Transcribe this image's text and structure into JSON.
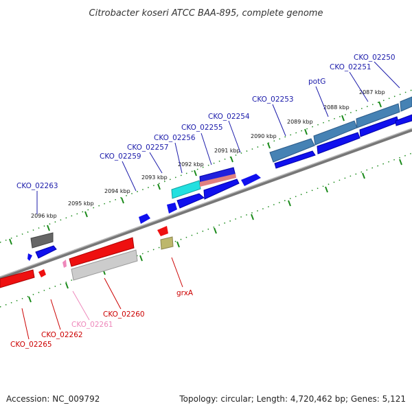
{
  "title": "Citrobacter koseri ATCC BAA-895, complete genome",
  "footer": {
    "accession": "Accession: NC_009792",
    "summary": "Topology: circular; Length: 4,720,462 bp; Genes: 5,121"
  },
  "scale_labels": [
    "2096 kbp",
    "2095 kbp",
    "2094 kbp",
    "2093 kbp",
    "2092 kbp",
    "2091 kbp",
    "2090 kbp",
    "2089 kbp",
    "2088 kbp",
    "2087 kbp"
  ],
  "gene_labels": [
    {
      "text": "CKO_02263",
      "color": "#1a1aaa"
    },
    {
      "text": "CKO_02259",
      "color": "#1a1aaa"
    },
    {
      "text": "CKO_02257",
      "color": "#1a1aaa"
    },
    {
      "text": "CKO_02256",
      "color": "#1a1aaa"
    },
    {
      "text": "CKO_02255",
      "color": "#1a1aaa"
    },
    {
      "text": "CKO_02254",
      "color": "#1a1aaa"
    },
    {
      "text": "CKO_02253",
      "color": "#1a1aaa"
    },
    {
      "text": "potG",
      "color": "#1a1aaa"
    },
    {
      "text": "CKO_02251",
      "color": "#1a1aaa"
    },
    {
      "text": "CKO_02250",
      "color": "#1a1aaa"
    },
    {
      "text": "grxA",
      "color": "#cc0000"
    },
    {
      "text": "CKO_02260",
      "color": "#cc0000"
    },
    {
      "text": "CKO_02261",
      "color": "#ee88bb"
    },
    {
      "text": "CKO_02262",
      "color": "#cc0000"
    },
    {
      "text": "CKO_02265",
      "color": "#cc0000"
    }
  ],
  "colors": {
    "forward_gene": "#1010ee",
    "reverse_gene": "#ee1010",
    "backbone": "#888888",
    "tick": "#1a8a1a",
    "steelblue_gene": "#4682b4",
    "cyan_gene": "#22e0e0",
    "gray_gene": "#777777",
    "khaki_gene": "#bdb76b",
    "pink_gene": "#ee88bb",
    "salmon_gene": "#e08080"
  }
}
